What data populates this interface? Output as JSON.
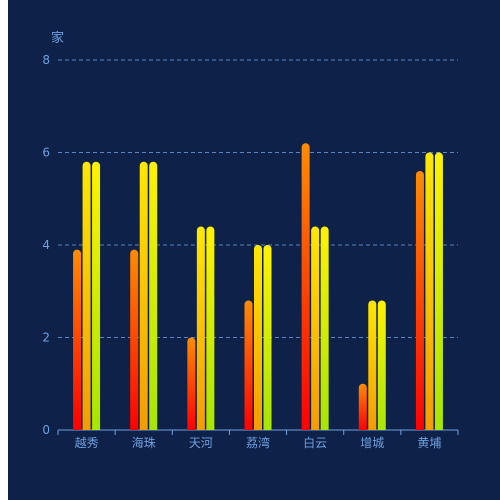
{
  "chart_data": {
    "type": "bar",
    "title": "",
    "xlabel": "",
    "ylabel": "家",
    "ylim": [
      0,
      8
    ],
    "yticks": [
      0,
      2,
      4,
      6,
      8
    ],
    "grid": true,
    "categories": [
      "越秀",
      "海珠",
      "天河",
      "荔湾",
      "白云",
      "增城",
      "黄埔"
    ],
    "series": [
      {
        "values": [
          3.9,
          3.9,
          2.0,
          2.8,
          6.2,
          1.0,
          5.6
        ],
        "gradient": [
          "#ff8c00",
          "#ff0000"
        ]
      },
      {
        "values": [
          5.8,
          5.8,
          4.4,
          4.0,
          4.4,
          2.8,
          6.0
        ],
        "gradient": [
          "#ffe800",
          "#f39c00"
        ]
      },
      {
        "values": [
          5.8,
          5.8,
          4.4,
          4.0,
          4.4,
          2.8,
          6.0
        ],
        "gradient": [
          "#fff200",
          "#a6e600"
        ]
      }
    ],
    "colors": {
      "background": "#0e2148",
      "axis": "#6f9fdc",
      "grid": "#6f9fdc"
    }
  }
}
